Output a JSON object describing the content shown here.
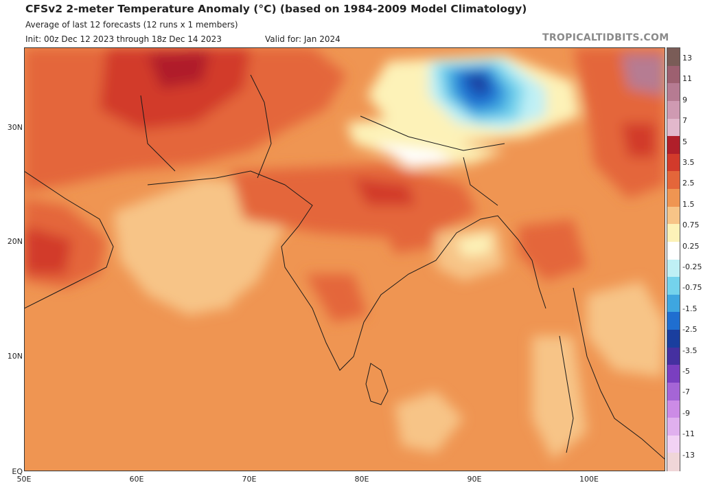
{
  "header": {
    "title": "CFSv2 2-meter Temperature Anomaly (°C) (based on 1984-2009 Model Climatology)",
    "subtitle": "Average of last 12 forecasts (12 runs x 1 members)",
    "init": "Init: 00z Dec 12 2023 through 18z Dec 14 2023",
    "valid": "Valid for: Jan 2024",
    "brand": "TROPICALTIDBITS.COM"
  },
  "map": {
    "lat_labels": [
      "30N",
      "20N",
      "10N",
      "EQ"
    ],
    "lon_labels": [
      "50E",
      "60E",
      "70E",
      "80E",
      "90E",
      "100E"
    ],
    "lat_range": [
      0,
      37
    ],
    "lon_range": [
      50,
      107
    ],
    "units": "°C"
  },
  "colorbar": {
    "labels": [
      "13",
      "11",
      "9",
      "7",
      "5",
      "3.5",
      "2.5",
      "1.5",
      "0.75",
      "0.25",
      "-0.25",
      "-0.75",
      "-1.5",
      "-2.5",
      "-3.5",
      "-5",
      "-7",
      "-9",
      "-11",
      "-13"
    ],
    "colors": [
      "#7a5c57",
      "#9d6070",
      "#b67b92",
      "#cf9ab2",
      "#e2b8cc",
      "#b01f2a",
      "#d23a2b",
      "#e4663a",
      "#ef9552",
      "#f7c487",
      "#fdf2b8",
      "#ffffff",
      "#bff0f5",
      "#74d3ec",
      "#3ea6e0",
      "#1f6ed0",
      "#1a3e9e",
      "#4530a0",
      "#7a3fc0",
      "#a565d6",
      "#cc8be6",
      "#e0b0ee",
      "#f2d2f4",
      "#f0d6d8"
    ]
  }
}
